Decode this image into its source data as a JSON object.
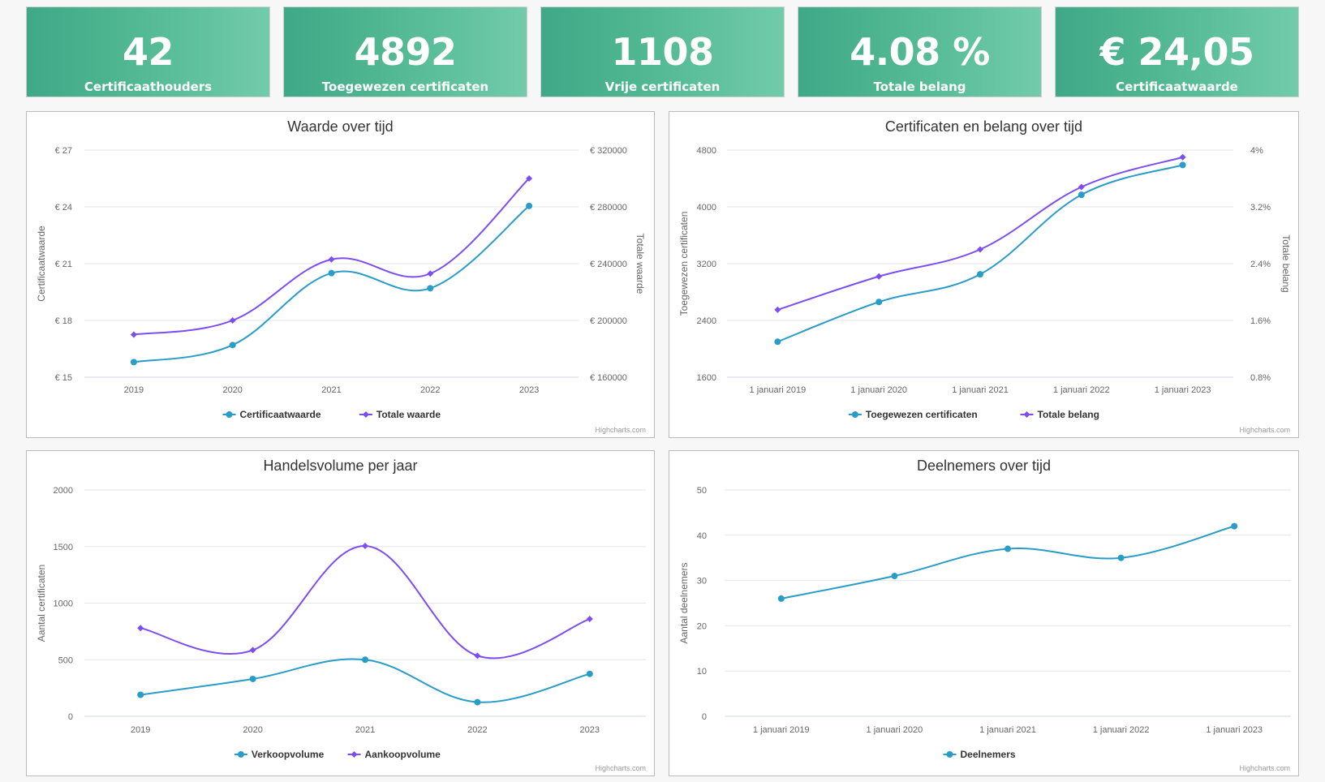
{
  "stats": [
    {
      "value": "42",
      "label": "Certificaathouders"
    },
    {
      "value": "4892",
      "label": "Toegewezen certificaten"
    },
    {
      "value": "1108",
      "label": "Vrije certificaten"
    },
    {
      "value": "4.08 %",
      "label": "Totale belang"
    },
    {
      "value": "€ 24,05",
      "label": "Certificaatwaarde"
    }
  ],
  "colors": {
    "primary": "#2a9cc8",
    "secondary": "#7c4ef0",
    "card": "#4fb592"
  },
  "credit": "Highcharts.com",
  "chart_data": [
    {
      "type": "line",
      "title": "Waarde over tijd",
      "categories": [
        "2019",
        "2020",
        "2021",
        "2022",
        "2023"
      ],
      "ylabel": "Certificaatwaarde",
      "ylabel_right": "Totale waarde",
      "y_ticks": [
        15,
        18,
        21,
        24,
        27
      ],
      "y_tick_labels": [
        "€ 15",
        "€ 18",
        "€ 21",
        "€ 24",
        "€ 27"
      ],
      "ylim": [
        15,
        27
      ],
      "y2_ticks": [
        160000,
        200000,
        240000,
        280000,
        320000
      ],
      "y2_tick_labels": [
        "€ 160000",
        "€ 200000",
        "€ 240000",
        "€ 280000",
        "€ 320000"
      ],
      "y2lim": [
        160000,
        320000
      ],
      "series": [
        {
          "name": "Certificaatwaarde",
          "axis": "left",
          "color": "#2a9cc8",
          "marker": "circle",
          "values": [
            15.8,
            16.7,
            20.5,
            19.7,
            24.05
          ]
        },
        {
          "name": "Totale waarde",
          "axis": "right",
          "color": "#7c4ef0",
          "marker": "diamond",
          "values": [
            190000,
            200000,
            243000,
            233000,
            300000
          ]
        }
      ]
    },
    {
      "type": "line",
      "title": "Certificaten en belang over tijd",
      "categories": [
        "1 januari 2019",
        "1 januari 2020",
        "1 januari 2021",
        "1 januari 2022",
        "1 januari 2023"
      ],
      "ylabel": "Toegewezen certificaten",
      "ylabel_right": "Totale belang",
      "y_ticks": [
        1600,
        2400,
        3200,
        4000,
        4800
      ],
      "y_tick_labels": [
        "1600",
        "2400",
        "3200",
        "4000",
        "4800"
      ],
      "ylim": [
        1600,
        4800
      ],
      "y2_ticks": [
        0.8,
        1.6,
        2.4,
        3.2,
        4.0
      ],
      "y2_tick_labels": [
        "0.8%",
        "1.6%",
        "2.4%",
        "3.2%",
        "4%"
      ],
      "y2lim": [
        0.8,
        4.0
      ],
      "series": [
        {
          "name": "Toegewezen certificaten",
          "axis": "left",
          "color": "#2a9cc8",
          "marker": "circle",
          "values": [
            2100,
            2660,
            3050,
            4170,
            4590
          ]
        },
        {
          "name": "Totale belang",
          "axis": "right",
          "color": "#7c4ef0",
          "marker": "diamond",
          "values": [
            1.75,
            2.22,
            2.6,
            3.48,
            3.9
          ]
        }
      ]
    },
    {
      "type": "line",
      "title": "Handelsvolume per jaar",
      "categories": [
        "2019",
        "2020",
        "2021",
        "2022",
        "2023"
      ],
      "ylabel": "Aantal certificaten",
      "y_ticks": [
        0,
        500,
        1000,
        1500,
        2000
      ],
      "y_tick_labels": [
        "0",
        "500",
        "1000",
        "1500",
        "2000"
      ],
      "ylim": [
        0,
        2000
      ],
      "series": [
        {
          "name": "Verkoopvolume",
          "axis": "left",
          "color": "#2a9cc8",
          "marker": "circle",
          "values": [
            190,
            330,
            500,
            125,
            375
          ]
        },
        {
          "name": "Aankoopvolume",
          "axis": "left",
          "color": "#7c4ef0",
          "marker": "diamond",
          "values": [
            780,
            585,
            1505,
            535,
            860
          ]
        }
      ]
    },
    {
      "type": "line",
      "title": "Deelnemers over tijd",
      "categories": [
        "1 januari 2019",
        "1 januari 2020",
        "1 januari 2021",
        "1 januari 2022",
        "1 januari 2023"
      ],
      "ylabel": "Aantal deelnemers",
      "y_ticks": [
        0,
        10,
        20,
        30,
        40,
        50
      ],
      "y_tick_labels": [
        "0",
        "10",
        "20",
        "30",
        "40",
        "50"
      ],
      "ylim": [
        0,
        50
      ],
      "series": [
        {
          "name": "Deelnemers",
          "axis": "left",
          "color": "#2a9cc8",
          "marker": "circle",
          "values": [
            26,
            31,
            37,
            35,
            42
          ]
        }
      ]
    }
  ]
}
